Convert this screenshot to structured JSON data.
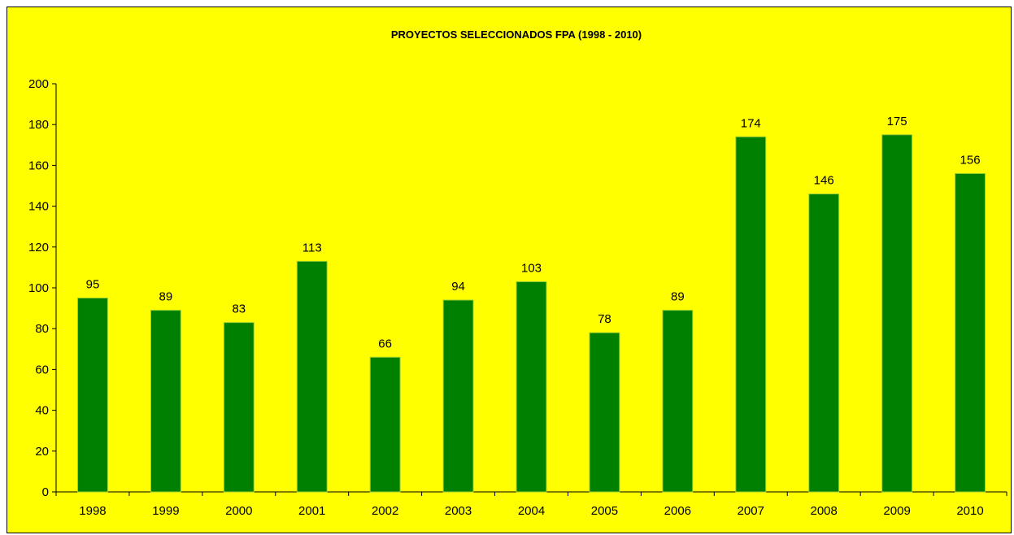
{
  "chart_data": {
    "type": "bar",
    "title": "PROYECTOS SELECCIONADOS FPA (1998 - 2010)",
    "xlabel": "",
    "ylabel": "",
    "categories": [
      "1998",
      "1999",
      "2000",
      "2001",
      "2002",
      "2003",
      "2004",
      "2005",
      "2006",
      "2007",
      "2008",
      "2009",
      "2010"
    ],
    "values": [
      95,
      89,
      83,
      113,
      66,
      94,
      103,
      78,
      89,
      174,
      146,
      175,
      156
    ],
    "ylim": [
      0,
      200
    ],
    "yticks": [
      0,
      20,
      40,
      60,
      80,
      100,
      120,
      140,
      160,
      180,
      200
    ],
    "grid": false,
    "legend": "none",
    "data_labels": true,
    "colors": {
      "background": "#ffff00",
      "bar": "#008000",
      "bar_edge": "#9acd32",
      "axis": "#000000",
      "text": "#000000"
    }
  }
}
